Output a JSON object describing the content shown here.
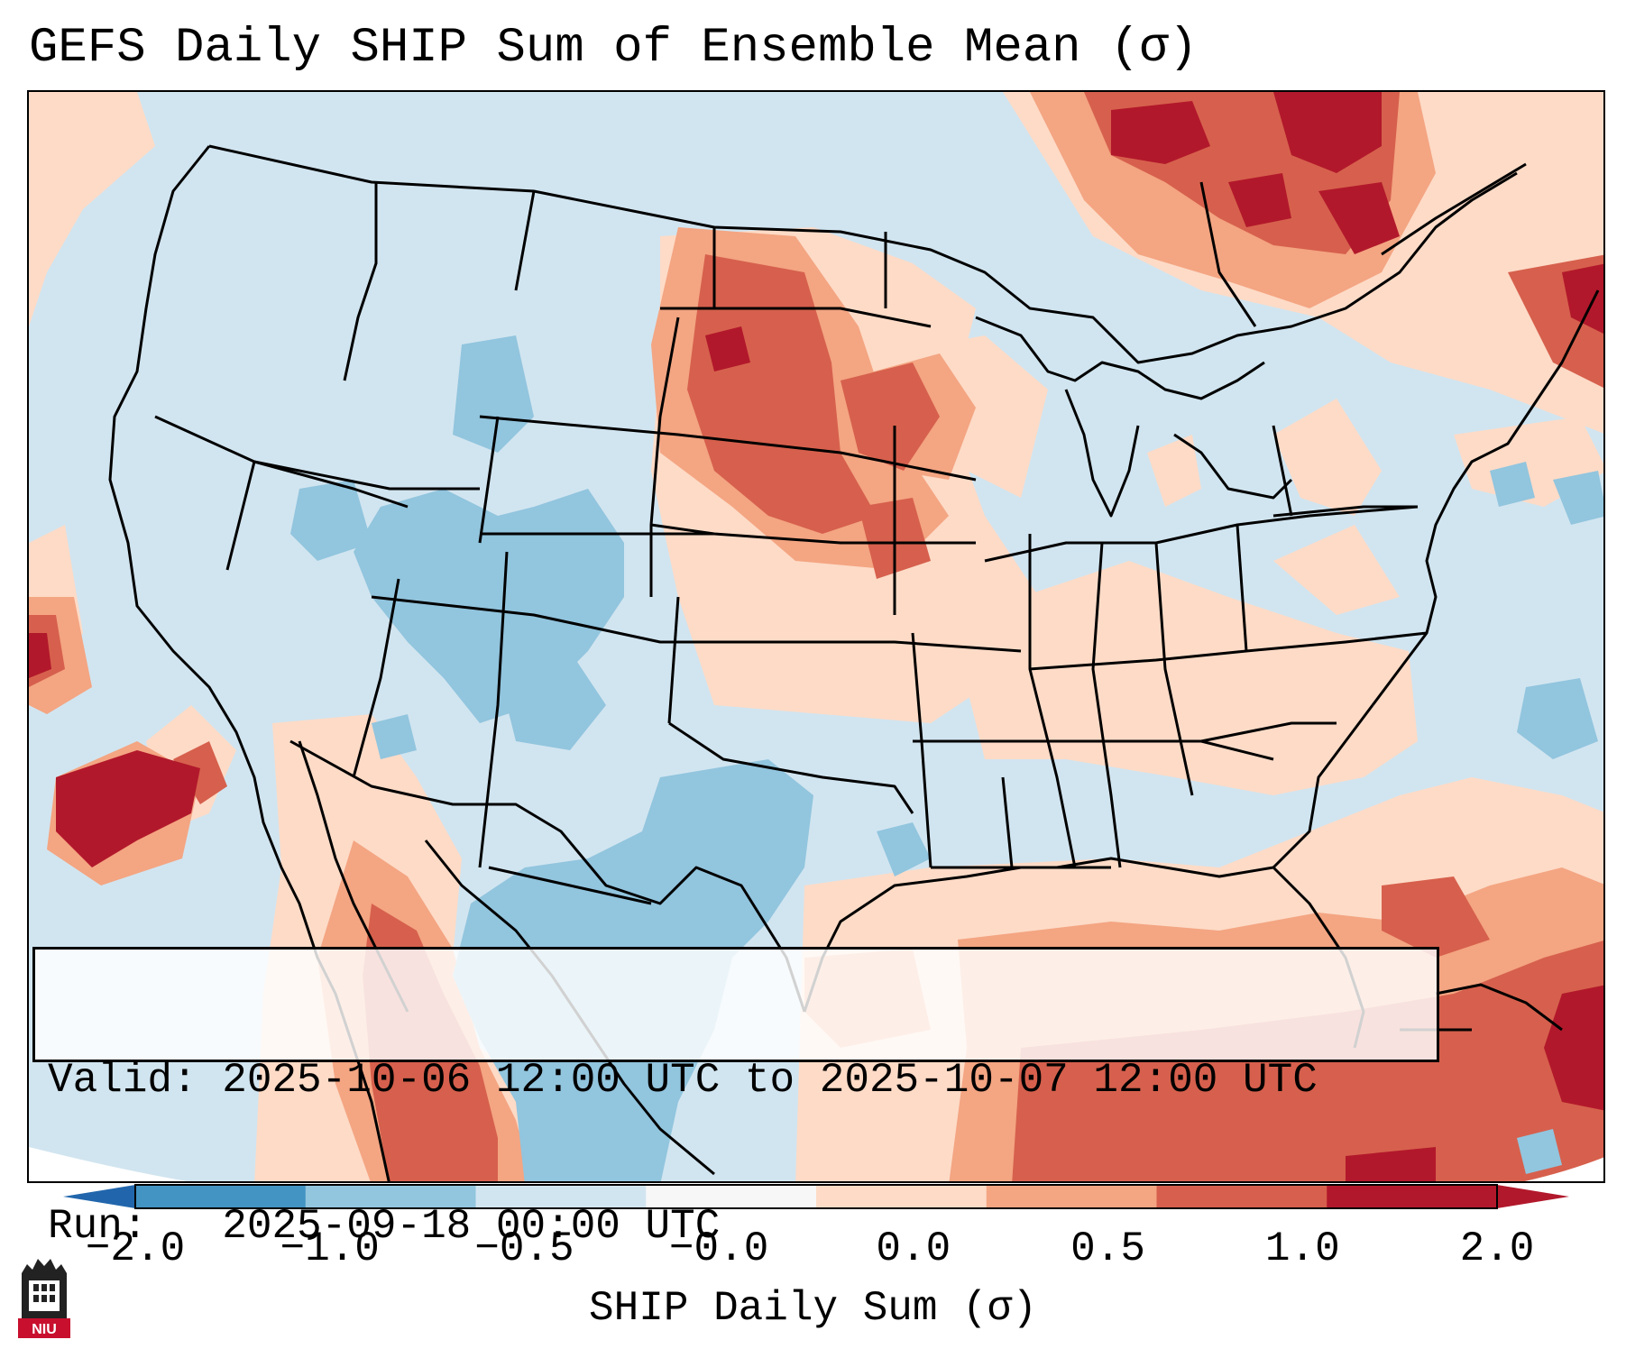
{
  "title": "GEFS Daily SHIP Sum of Ensemble Mean (σ)",
  "info": {
    "valid_line": "Valid: 2025-10-06 12:00 UTC to 2025-10-07 12:00 UTC",
    "run_line": "Run:   2025-09-18 00:00 UTC"
  },
  "colorbar": {
    "label": "SHIP Daily Sum (σ)",
    "ticks": [
      "−2.0",
      "−1.0",
      "−0.5",
      "−0.0",
      "0.0",
      "0.5",
      "1.0",
      "2.0"
    ],
    "colors": [
      "#4393c3",
      "#92c5de",
      "#d1e5f0",
      "#f7f7f7",
      "#fddbc7",
      "#f4a582",
      "#d6604d",
      "#b2182b"
    ],
    "extend_low_color": "#2166ac",
    "extend_high_color": "#b2182b"
  },
  "logo": {
    "text": "NIU",
    "color": "#c8102e"
  }
}
